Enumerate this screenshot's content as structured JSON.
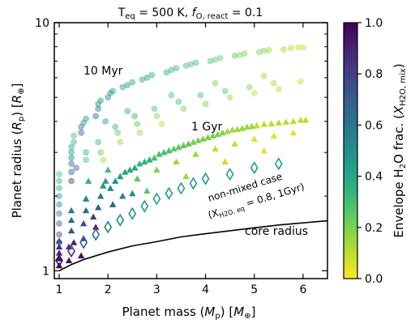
{
  "title": "T_eq = 500 K, f_O,react = 0.1",
  "title_parts": {
    "t": "T",
    "t_sub": "eq",
    "t_val": " = 500 K,  ",
    "f": "f",
    "f_sub": "O, react",
    "f_val": " = 0.1"
  },
  "colors": {
    "bar_top": "#440154",
    "bar_stops": [
      "#fde725",
      "#b5de2b",
      "#6ece58",
      "#35b779",
      "#1f9e89",
      "#26828e",
      "#31688e",
      "#3e4989",
      "#482878",
      "#440154"
    ],
    "zero_color": "#f4ec8a",
    "open_diamond": "#4e9a6c",
    "accent_dark": "#2b1f7a"
  },
  "chart_data": {
    "type": "scatter",
    "xlabel": "Planet mass (M_p) [M_⊕]",
    "xlabel_parts": {
      "a": "Planet mass (",
      "m": "M",
      "m_sub": "p",
      "b": ") [",
      "u": "M",
      "u_sub": "⊕",
      "c": "]"
    },
    "ylabel": "Planet radius (R_p) [R_⊕]",
    "ylabel_parts": {
      "a": "Planet radius (",
      "r": "R",
      "r_sub": "p",
      "b": ") [",
      "u": "R",
      "u_sub": "⊕",
      "c": "]"
    },
    "xlim": [
      0.9,
      6.5
    ],
    "ylim": [
      0.93,
      10
    ],
    "yscale": "log",
    "xticks": [
      1,
      2,
      3,
      4,
      5,
      6
    ],
    "xtick_labels": [
      "1",
      "2",
      "3",
      "4",
      "5",
      "6"
    ],
    "yticks": [
      1,
      10
    ],
    "ytick_labels": [
      "1",
      "10"
    ],
    "colorbar": {
      "label": "Envelope H2O frac. (X_H2O,mix)",
      "label_parts": {
        "a": "Envelope H",
        "a_sub": "2",
        "b": "O frac. (",
        "x": "X",
        "x_sub": "H2O, mix",
        "c": ")"
      },
      "min": 0.0,
      "max": 1.0,
      "ticks": [
        0.0,
        0.2,
        0.4,
        0.6,
        0.8,
        1.0
      ],
      "tick_labels": [
        "0.0",
        "0.2",
        "0.4",
        "0.6",
        "0.8",
        "1.0"
      ],
      "colormap": "viridis_r"
    },
    "annotations": {
      "myr": "10 Myr",
      "gyr": "1 Gyr",
      "nonmixed_line1": "non-mixed case",
      "nonmixed_line2_parts": {
        "a": "(X",
        "sub": "H2O, eq",
        "b": " = 0.8, 1Gyr)"
      },
      "core": "core radius"
    },
    "series": [
      {
        "marker": "circle",
        "alpha": 0.45,
        "points": [
          [
            1.0,
            1.3,
            0.9
          ],
          [
            1.0,
            1.4,
            0.8
          ],
          [
            1.0,
            1.55,
            0.75
          ],
          [
            1.0,
            1.7,
            0.65
          ],
          [
            1.0,
            1.85,
            0.55
          ],
          [
            1.0,
            2.0,
            0.45
          ],
          [
            1.0,
            2.15,
            0.4
          ],
          [
            1.0,
            2.3,
            0.35
          ],
          [
            1.0,
            2.45,
            0.3
          ],
          [
            1.25,
            2.3,
            0.85
          ],
          [
            1.25,
            2.5,
            0.75
          ],
          [
            1.25,
            2.7,
            0.65
          ],
          [
            1.25,
            2.85,
            0.55
          ],
          [
            1.25,
            3.0,
            0.45
          ],
          [
            1.25,
            3.15,
            0.4
          ],
          [
            1.3,
            3.3,
            0.35
          ],
          [
            1.3,
            3.5,
            0.3
          ],
          [
            1.35,
            2.6,
            0.7
          ],
          [
            1.45,
            3.6,
            0.7
          ],
          [
            1.45,
            3.8,
            0.6
          ],
          [
            1.5,
            3.95,
            0.5
          ],
          [
            1.55,
            4.1,
            0.45
          ],
          [
            1.55,
            3.0,
            0.35
          ],
          [
            1.55,
            2.8,
            0.3
          ],
          [
            1.75,
            4.2,
            0.7
          ],
          [
            1.8,
            4.5,
            0.6
          ],
          [
            1.8,
            4.7,
            0.5
          ],
          [
            1.85,
            4.85,
            0.45
          ],
          [
            1.8,
            3.3,
            0.35
          ],
          [
            1.85,
            3.0,
            0.25
          ],
          [
            1.9,
            2.8,
            0.15
          ],
          [
            2.0,
            5.0,
            0.55
          ],
          [
            2.05,
            5.2,
            0.5
          ],
          [
            2.1,
            5.3,
            0.45
          ],
          [
            2.15,
            3.8,
            0.35
          ],
          [
            2.2,
            3.6,
            0.25
          ],
          [
            2.25,
            3.3,
            0.15
          ],
          [
            2.3,
            5.5,
            0.45
          ],
          [
            2.4,
            5.6,
            0.5
          ],
          [
            2.5,
            5.75,
            0.45
          ],
          [
            2.55,
            4.2,
            0.35
          ],
          [
            2.6,
            3.9,
            0.25
          ],
          [
            2.65,
            3.6,
            0.15
          ],
          [
            2.7,
            5.9,
            0.4
          ],
          [
            2.8,
            6.0,
            0.45
          ],
          [
            2.9,
            6.15,
            0.4
          ],
          [
            2.95,
            4.5,
            0.3
          ],
          [
            3.0,
            4.2,
            0.2
          ],
          [
            3.1,
            3.9,
            0.1
          ],
          [
            3.2,
            6.3,
            0.4
          ],
          [
            3.3,
            6.45,
            0.35
          ],
          [
            3.4,
            6.55,
            0.35
          ],
          [
            3.45,
            4.8,
            0.3
          ],
          [
            3.55,
            4.5,
            0.2
          ],
          [
            3.6,
            6.7,
            0.3
          ],
          [
            3.7,
            6.8,
            0.3
          ],
          [
            3.8,
            6.9,
            0.3
          ],
          [
            3.9,
            5.1,
            0.3
          ],
          [
            4.0,
            4.7,
            0.2
          ],
          [
            4.1,
            7.0,
            0.3
          ],
          [
            4.2,
            7.1,
            0.25
          ],
          [
            4.3,
            7.2,
            0.25
          ],
          [
            4.4,
            5.3,
            0.25
          ],
          [
            4.5,
            5.0,
            0.15
          ],
          [
            4.6,
            7.35,
            0.25
          ],
          [
            4.7,
            7.4,
            0.2
          ],
          [
            4.8,
            7.5,
            0.2
          ],
          [
            4.9,
            5.5,
            0.2
          ],
          [
            5.0,
            5.2,
            0.1
          ],
          [
            5.1,
            7.6,
            0.2
          ],
          [
            5.2,
            7.7,
            0.2
          ],
          [
            5.3,
            7.75,
            0.15
          ],
          [
            5.4,
            5.7,
            0.15
          ],
          [
            5.5,
            5.4,
            0.1
          ],
          [
            5.6,
            7.8,
            0.15
          ],
          [
            5.75,
            7.9,
            0.15
          ],
          [
            5.9,
            7.95,
            0.1
          ],
          [
            6.0,
            7.95,
            0.1
          ],
          [
            5.95,
            5.8,
            0.1
          ],
          [
            5.2,
            6.1,
            0.15
          ],
          [
            4.2,
            5.7,
            0.2
          ],
          [
            3.3,
            5.1,
            0.3
          ],
          [
            2.4,
            4.4,
            0.4
          ],
          [
            1.95,
            4.0,
            0.45
          ]
        ]
      },
      {
        "marker": "triangle",
        "alpha": 1.0,
        "points": [
          [
            1.0,
            1.05,
            1.0
          ],
          [
            1.0,
            1.12,
            0.95
          ],
          [
            1.0,
            1.18,
            0.9
          ],
          [
            1.0,
            1.25,
            0.85
          ],
          [
            1.0,
            1.32,
            0.75
          ],
          [
            1.2,
            1.1,
            0.95
          ],
          [
            1.2,
            1.25,
            0.85
          ],
          [
            1.25,
            1.45,
            0.75
          ],
          [
            1.25,
            1.6,
            0.65
          ],
          [
            1.25,
            1.75,
            0.6
          ],
          [
            1.45,
            1.15,
            0.95
          ],
          [
            1.5,
            1.35,
            0.85
          ],
          [
            1.5,
            1.55,
            0.75
          ],
          [
            1.55,
            1.75,
            0.65
          ],
          [
            1.55,
            1.95,
            0.55
          ],
          [
            1.75,
            1.5,
            0.9
          ],
          [
            1.8,
            1.8,
            0.7
          ],
          [
            1.85,
            2.0,
            0.6
          ],
          [
            1.9,
            2.2,
            0.5
          ],
          [
            1.95,
            2.3,
            0.45
          ],
          [
            2.05,
            2.15,
            0.55
          ],
          [
            2.15,
            2.3,
            0.5
          ],
          [
            2.25,
            2.4,
            0.45
          ],
          [
            2.35,
            2.5,
            0.4
          ],
          [
            2.45,
            2.55,
            0.4
          ],
          [
            2.55,
            2.6,
            0.4
          ],
          [
            2.65,
            2.7,
            0.35
          ],
          [
            2.75,
            2.75,
            0.35
          ],
          [
            2.85,
            2.8,
            0.35
          ],
          [
            2.95,
            2.85,
            0.3
          ],
          [
            3.05,
            2.95,
            0.3
          ],
          [
            3.15,
            3.0,
            0.3
          ],
          [
            3.25,
            3.05,
            0.3
          ],
          [
            3.35,
            3.1,
            0.25
          ],
          [
            3.45,
            3.15,
            0.25
          ],
          [
            3.55,
            3.2,
            0.25
          ],
          [
            3.65,
            3.25,
            0.25
          ],
          [
            3.75,
            3.3,
            0.2
          ],
          [
            3.85,
            3.35,
            0.2
          ],
          [
            3.95,
            3.4,
            0.2
          ],
          [
            4.05,
            3.45,
            0.2
          ],
          [
            4.15,
            3.5,
            0.2
          ],
          [
            4.25,
            3.55,
            0.2
          ],
          [
            4.35,
            3.6,
            0.2
          ],
          [
            4.45,
            3.65,
            0.15
          ],
          [
            4.55,
            3.7,
            0.15
          ],
          [
            4.65,
            3.72,
            0.15
          ],
          [
            4.75,
            3.75,
            0.15
          ],
          [
            4.85,
            3.8,
            0.15
          ],
          [
            4.95,
            3.82,
            0.15
          ],
          [
            5.05,
            3.85,
            0.1
          ],
          [
            5.2,
            3.9,
            0.1
          ],
          [
            5.35,
            3.92,
            0.1
          ],
          [
            5.5,
            3.95,
            0.1
          ],
          [
            5.65,
            3.98,
            0.1
          ],
          [
            5.8,
            4.0,
            0.1
          ],
          [
            5.95,
            4.05,
            0.1
          ],
          [
            6.05,
            4.05,
            0.1
          ],
          [
            1.6,
            2.3,
            0.35
          ],
          [
            2.0,
            2.55,
            0.3
          ],
          [
            2.3,
            2.0,
            0.55
          ],
          [
            2.6,
            2.35,
            0.25
          ],
          [
            3.0,
            2.55,
            0.2
          ],
          [
            3.4,
            2.75,
            0.15
          ],
          [
            3.8,
            2.95,
            0.15
          ],
          [
            4.2,
            3.1,
            0.1
          ],
          [
            4.6,
            3.25,
            0.1
          ],
          [
            5.0,
            3.4,
            0.05
          ],
          [
            5.4,
            3.5,
            0.05
          ],
          [
            5.8,
            3.6,
            0.05
          ],
          [
            2.8,
            2.1,
            0.25
          ],
          [
            3.6,
            2.4,
            0.15
          ],
          [
            4.4,
            2.75,
            0.1
          ],
          [
            5.2,
            3.05,
            0.05
          ],
          [
            1.3,
            1.3,
            0.9
          ],
          [
            1.7,
            1.65,
            0.8
          ],
          [
            2.1,
            1.85,
            0.7
          ],
          [
            2.5,
            2.05,
            0.5
          ]
        ]
      },
      {
        "marker": "open_diamond",
        "alpha": 1.0,
        "points": [
          [
            1.0,
            1.1,
            0.95
          ],
          [
            1.25,
            1.2,
            0.85
          ],
          [
            1.5,
            1.3,
            0.7
          ],
          [
            1.75,
            1.4,
            0.6
          ],
          [
            2.0,
            1.5,
            0.55
          ],
          [
            2.25,
            1.6,
            0.5
          ],
          [
            2.5,
            1.7,
            0.5
          ],
          [
            2.75,
            1.82,
            0.45
          ],
          [
            3.0,
            1.95,
            0.45
          ],
          [
            3.25,
            2.05,
            0.45
          ],
          [
            3.5,
            2.15,
            0.45
          ],
          [
            3.75,
            2.25,
            0.45
          ],
          [
            4.0,
            2.35,
            0.45
          ],
          [
            4.5,
            2.45,
            0.45
          ],
          [
            5.0,
            2.6,
            0.45
          ],
          [
            5.5,
            2.7,
            0.45
          ]
        ]
      }
    ],
    "core_radius_curve": [
      [
        1.0,
        1.0
      ],
      [
        1.25,
        1.06
      ],
      [
        1.5,
        1.11
      ],
      [
        1.75,
        1.15
      ],
      [
        2.0,
        1.19
      ],
      [
        2.5,
        1.26
      ],
      [
        3.0,
        1.31
      ],
      [
        3.5,
        1.37
      ],
      [
        4.0,
        1.41
      ],
      [
        4.5,
        1.45
      ],
      [
        5.0,
        1.49
      ],
      [
        5.5,
        1.53
      ],
      [
        6.0,
        1.56
      ],
      [
        6.5,
        1.59
      ]
    ]
  }
}
